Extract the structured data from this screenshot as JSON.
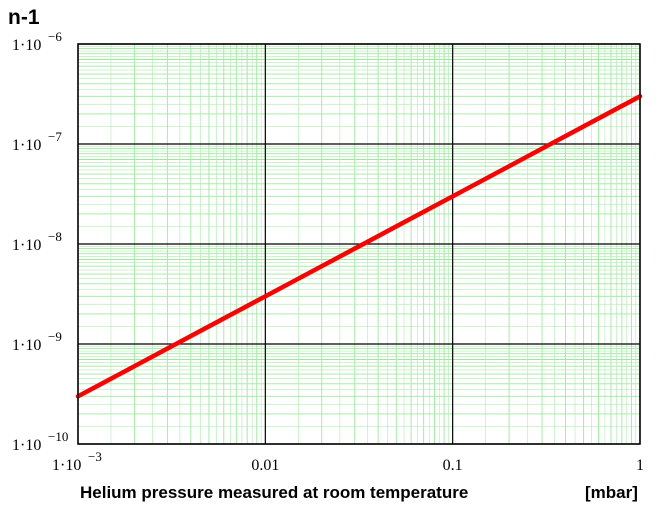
{
  "chart_data": {
    "type": "line",
    "scale": {
      "x": "log",
      "y": "log"
    },
    "grid": true,
    "ylabel": "n-1",
    "xlabel": "Helium pressure measured at room temperature",
    "xunit": "[mbar]",
    "xlim": [
      0.001,
      1
    ],
    "ylim": [
      1e-10,
      1e-06
    ],
    "x_ticks": [
      {
        "value": 0.001,
        "base": "1·10",
        "exp": "−3"
      },
      {
        "value": 0.01,
        "label": "0.01"
      },
      {
        "value": 0.1,
        "label": "0.1"
      },
      {
        "value": 1,
        "label": "1"
      }
    ],
    "y_ticks": [
      {
        "value": 1e-10,
        "base": "1·10",
        "exp": "−10"
      },
      {
        "value": 1e-09,
        "base": "1·10",
        "exp": "−9"
      },
      {
        "value": 1e-08,
        "base": "1·10",
        "exp": "−8"
      },
      {
        "value": 1e-07,
        "base": "1·10",
        "exp": "−7"
      },
      {
        "value": 1e-06,
        "base": "1·10",
        "exp": "−6"
      }
    ],
    "series": [
      {
        "color": "#ff0000",
        "x": [
          0.001,
          0.002,
          0.005,
          0.01,
          0.02,
          0.05,
          0.1,
          0.2,
          0.5,
          1
        ],
        "y": [
          3e-10,
          6e-10,
          1.5e-09,
          3e-09,
          6e-09,
          1.5e-08,
          3e-08,
          6e-08,
          1.5e-07,
          3e-07
        ]
      }
    ]
  }
}
